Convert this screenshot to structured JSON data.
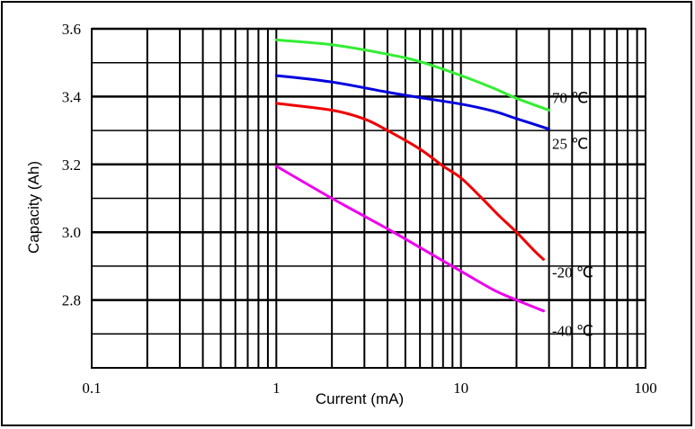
{
  "chart_data": {
    "type": "line",
    "title": "",
    "xlabel": "Current (mA)",
    "ylabel": "Capacity (Ah)",
    "xscale": "log",
    "xlim": [
      0.1,
      100
    ],
    "ylim": [
      2.6,
      3.6
    ],
    "x_ticks": [
      {
        "value": 0.1,
        "label": "0.1"
      },
      {
        "value": 1,
        "label": "1"
      },
      {
        "value": 10,
        "label": "10"
      },
      {
        "value": 100,
        "label": "100"
      }
    ],
    "y_ticks": [
      {
        "value": 3.6,
        "label": "3.6"
      },
      {
        "value": 3.4,
        "label": "3.4"
      },
      {
        "value": 3.2,
        "label": "3.2"
      },
      {
        "value": 3.0,
        "label": "3.0"
      },
      {
        "value": 2.8,
        "label": "2.8"
      }
    ],
    "grid": true,
    "series": [
      {
        "name": "70 ℃",
        "color": "#33ee33",
        "points": [
          [
            1,
            3.567
          ],
          [
            2,
            3.553
          ],
          [
            4,
            3.525
          ],
          [
            6,
            3.503
          ],
          [
            10,
            3.462
          ],
          [
            15,
            3.425
          ],
          [
            20,
            3.395
          ],
          [
            30,
            3.36
          ]
        ]
      },
      {
        "name": "25 ℃",
        "color": "#0000dd",
        "points": [
          [
            1,
            3.462
          ],
          [
            2,
            3.443
          ],
          [
            4,
            3.413
          ],
          [
            6,
            3.397
          ],
          [
            10,
            3.378
          ],
          [
            15,
            3.357
          ],
          [
            20,
            3.335
          ],
          [
            30,
            3.304
          ]
        ]
      },
      {
        "name": "-20 ℃",
        "color": "#ee0000",
        "points": [
          [
            1,
            3.38
          ],
          [
            2,
            3.36
          ],
          [
            3,
            3.334
          ],
          [
            4,
            3.3
          ],
          [
            6,
            3.245
          ],
          [
            8,
            3.195
          ],
          [
            10,
            3.16
          ],
          [
            13,
            3.1
          ],
          [
            16,
            3.05
          ],
          [
            20,
            3.0
          ],
          [
            25,
            2.945
          ],
          [
            28,
            2.92
          ]
        ]
      },
      {
        "name": "-40 ℃",
        "color": "#ee00ee",
        "points": [
          [
            1,
            3.195
          ],
          [
            2,
            3.1
          ],
          [
            4,
            3.01
          ],
          [
            6,
            2.955
          ],
          [
            10,
            2.885
          ],
          [
            15,
            2.83
          ],
          [
            20,
            2.8
          ],
          [
            28,
            2.768
          ]
        ]
      }
    ],
    "series_labels": [
      {
        "text": "70 ℃",
        "series": "70 ℃"
      },
      {
        "text": "25 ℃",
        "series": "25 ℃"
      },
      {
        "text": "-20 ℃",
        "series": "-20 ℃"
      },
      {
        "text": "-40 ℃",
        "series": "-40 ℃"
      }
    ]
  }
}
